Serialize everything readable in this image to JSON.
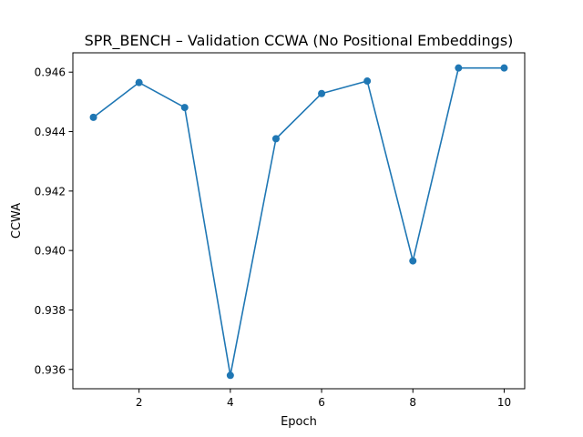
{
  "chart_data": {
    "type": "line",
    "title": "SPR_BENCH – Validation CCWA (No Positional Embeddings)",
    "xlabel": "Epoch",
    "ylabel": "CCWA",
    "xlim": [
      0.55,
      10.45
    ],
    "ylim": [
      0.93535,
      0.94665
    ],
    "x_ticks": [
      2,
      4,
      6,
      8,
      10
    ],
    "x_tick_labels": [
      "2",
      "4",
      "6",
      "8",
      "10"
    ],
    "y_ticks": [
      0.936,
      0.938,
      0.94,
      0.942,
      0.944,
      0.946
    ],
    "y_tick_labels": [
      "0.936",
      "0.938",
      "0.940",
      "0.942",
      "0.944",
      "0.946"
    ],
    "grid": false,
    "series": [
      {
        "color": "#1f77b4",
        "marker": "circle",
        "x": [
          1,
          2,
          3,
          4,
          5,
          6,
          7,
          8,
          9,
          10
        ],
        "y": [
          0.94448,
          0.94565,
          0.94481,
          0.9358,
          0.94376,
          0.94528,
          0.9457,
          0.93965,
          0.94614,
          0.94614
        ]
      }
    ]
  }
}
